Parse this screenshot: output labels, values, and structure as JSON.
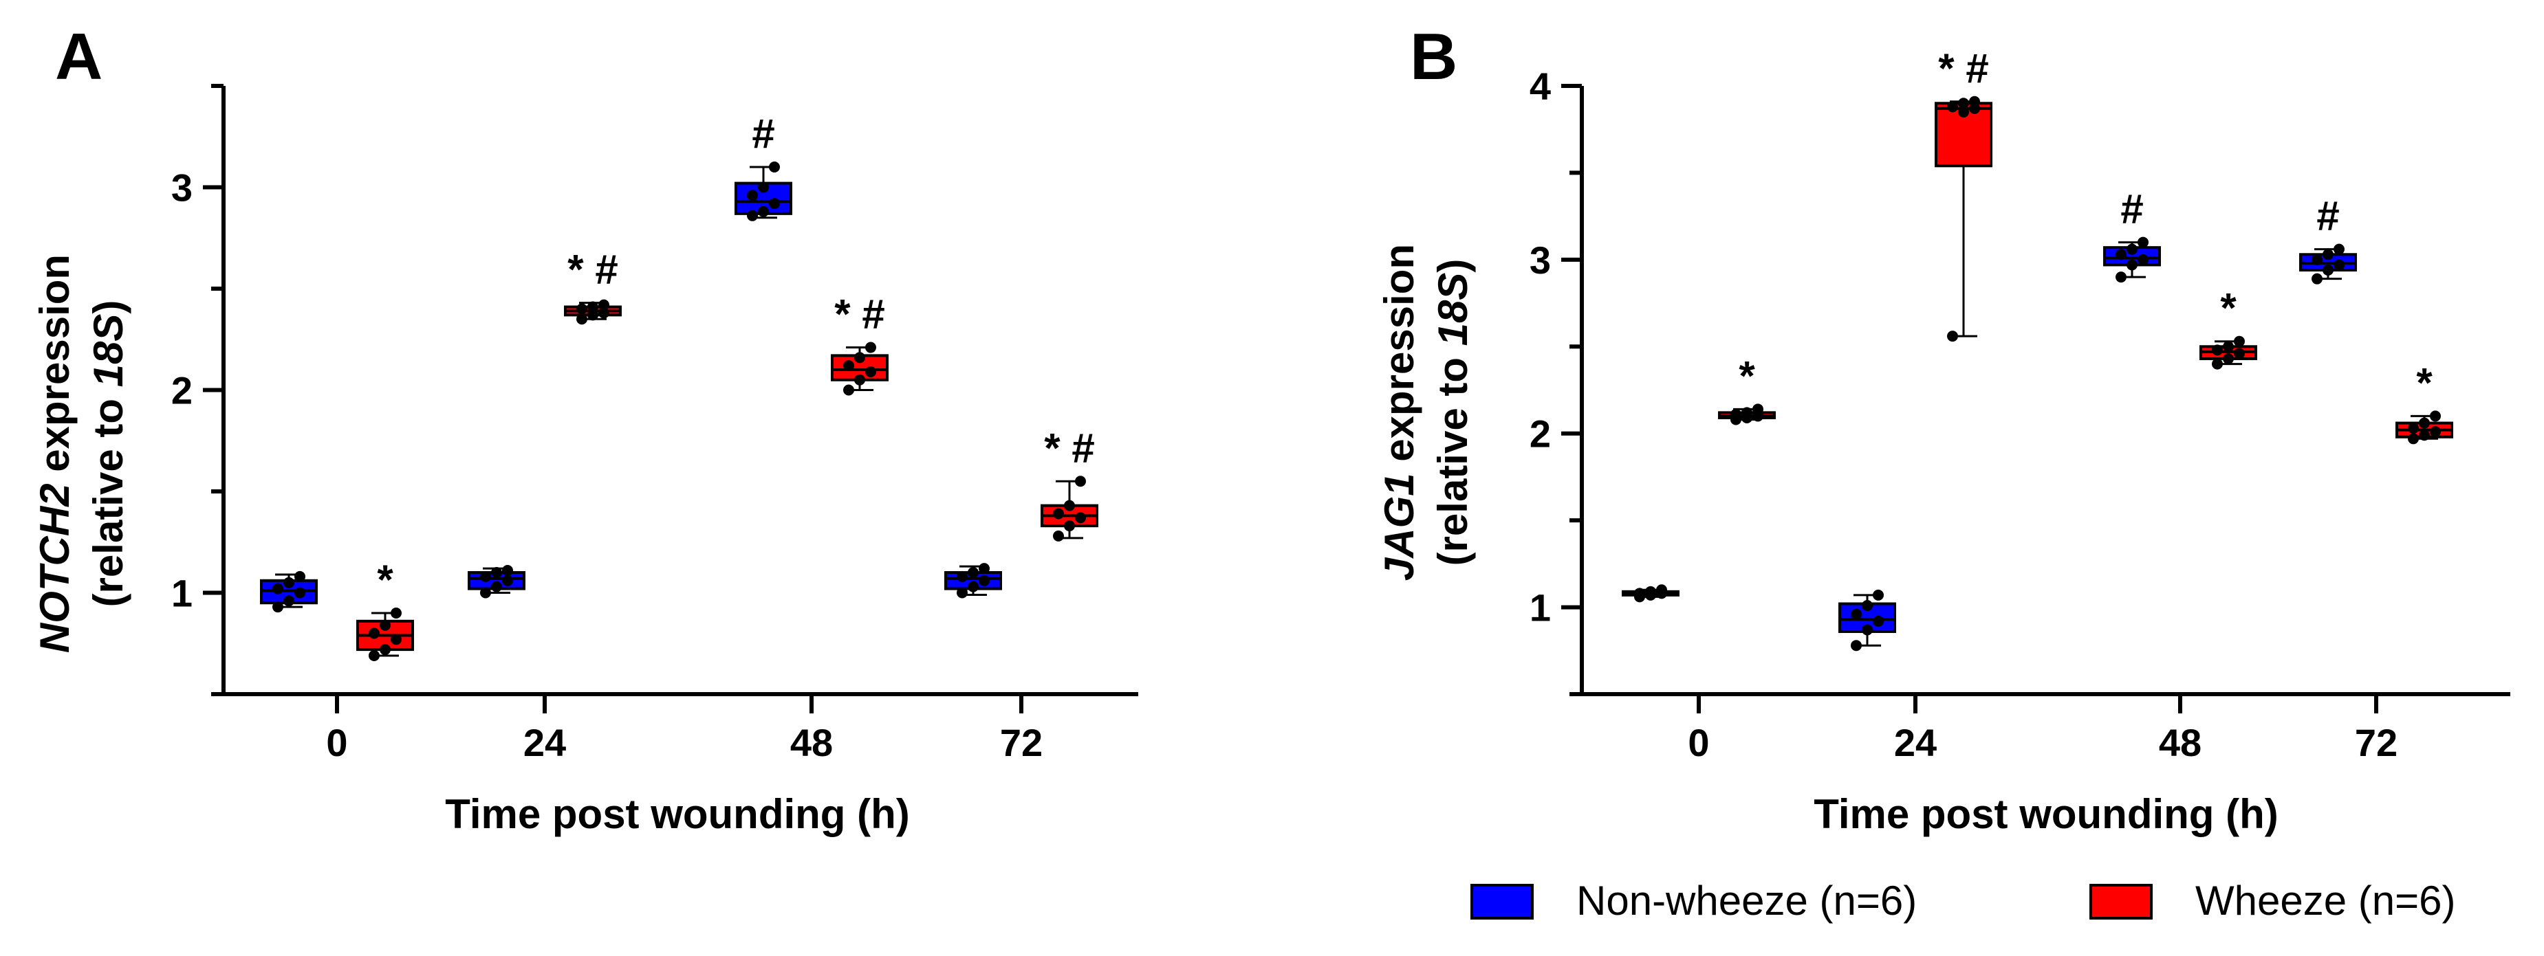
{
  "colors": {
    "non_wheeze": "#0000ff",
    "wheeze": "#ff0000"
  },
  "legend": [
    {
      "label": "Non-wheeze (n=6)",
      "color": "#0000ff"
    },
    {
      "label": "Wheeze (n=6)",
      "color": "#ff0000"
    }
  ],
  "chart_data": [
    {
      "type": "box",
      "panel": "A",
      "ylabel_italic": "NOTCH2",
      "ylabel_rest": " expression",
      "ylabel_line2_prefix": "(relative to ",
      "ylabel_line2_italic": "18S",
      "ylabel_line2_suffix": ")",
      "xlabel": "Time post wounding (h)",
      "categories": [
        "0",
        "24",
        "48",
        "72"
      ],
      "ylim": [
        0.5,
        3.5
      ],
      "yticks": [
        1,
        2,
        3
      ],
      "series": [
        {
          "name": "Non-wheeze (n=6)",
          "color": "#0000ff",
          "boxes": [
            {
              "min": 0.93,
              "q1": 0.95,
              "median": 1.01,
              "q3": 1.06,
              "max": 1.09,
              "annotation": "",
              "points": [
                0.93,
                0.96,
                1.0,
                1.02,
                1.05,
                1.08
              ]
            },
            {
              "min": 1.0,
              "q1": 1.02,
              "median": 1.07,
              "q3": 1.1,
              "max": 1.12,
              "annotation": "",
              "points": [
                1.0,
                1.03,
                1.06,
                1.08,
                1.1,
                1.11
              ]
            },
            {
              "min": 2.85,
              "q1": 2.87,
              "median": 2.93,
              "q3": 3.02,
              "max": 3.1,
              "annotation": "#",
              "points": [
                2.86,
                2.88,
                2.92,
                2.96,
                3.0,
                3.1
              ]
            },
            {
              "min": 0.99,
              "q1": 1.02,
              "median": 1.07,
              "q3": 1.1,
              "max": 1.13,
              "annotation": "",
              "points": [
                1.0,
                1.03,
                1.06,
                1.08,
                1.1,
                1.12
              ]
            }
          ]
        },
        {
          "name": "Wheeze (n=6)",
          "color": "#ff0000",
          "boxes": [
            {
              "min": 0.69,
              "q1": 0.72,
              "median": 0.79,
              "q3": 0.86,
              "max": 0.9,
              "annotation": "*",
              "points": [
                0.69,
                0.72,
                0.77,
                0.8,
                0.84,
                0.9
              ]
            },
            {
              "min": 2.35,
              "q1": 2.37,
              "median": 2.39,
              "q3": 2.41,
              "max": 2.43,
              "annotation": "* #",
              "points": [
                2.35,
                2.37,
                2.38,
                2.4,
                2.41,
                2.42
              ]
            },
            {
              "min": 2.0,
              "q1": 2.05,
              "median": 2.1,
              "q3": 2.17,
              "max": 2.21,
              "annotation": "* #",
              "points": [
                2.0,
                2.05,
                2.09,
                2.12,
                2.16,
                2.21
              ]
            },
            {
              "min": 1.27,
              "q1": 1.33,
              "median": 1.38,
              "q3": 1.43,
              "max": 1.55,
              "annotation": "* #",
              "points": [
                1.28,
                1.33,
                1.37,
                1.39,
                1.43,
                1.55
              ]
            }
          ]
        }
      ]
    },
    {
      "type": "box",
      "panel": "B",
      "ylabel_italic": "JAG1",
      "ylabel_rest": " expression",
      "ylabel_line2_prefix": "(relative to ",
      "ylabel_line2_italic": "18S",
      "ylabel_line2_suffix": ")",
      "xlabel": "Time post wounding (h)",
      "categories": [
        "0",
        "24",
        "48",
        "72"
      ],
      "ylim": [
        0.5,
        4.0
      ],
      "yticks": [
        1,
        2,
        3,
        4
      ],
      "series": [
        {
          "name": "Non-wheeze (n=6)",
          "color": "#0000ff",
          "boxes": [
            {
              "min": 1.06,
              "q1": 1.07,
              "median": 1.08,
              "q3": 1.09,
              "max": 1.1,
              "annotation": "",
              "points": [
                1.06,
                1.07,
                1.08,
                1.08,
                1.09,
                1.1
              ]
            },
            {
              "min": 0.78,
              "q1": 0.86,
              "median": 0.93,
              "q3": 1.02,
              "max": 1.07,
              "annotation": "",
              "points": [
                0.78,
                0.87,
                0.92,
                0.96,
                1.01,
                1.07
              ]
            },
            {
              "min": 2.9,
              "q1": 2.97,
              "median": 3.01,
              "q3": 3.07,
              "max": 3.1,
              "annotation": "#",
              "points": [
                2.9,
                2.97,
                3.0,
                3.03,
                3.06,
                3.1
              ]
            },
            {
              "min": 2.89,
              "q1": 2.94,
              "median": 2.98,
              "q3": 3.03,
              "max": 3.06,
              "annotation": "#",
              "points": [
                2.89,
                2.94,
                2.97,
                3.0,
                3.03,
                3.06
              ]
            }
          ]
        },
        {
          "name": "Wheeze (n=6)",
          "color": "#ff0000",
          "boxes": [
            {
              "min": 2.08,
              "q1": 2.09,
              "median": 2.1,
              "q3": 2.12,
              "max": 2.14,
              "annotation": "*",
              "points": [
                2.08,
                2.09,
                2.1,
                2.11,
                2.12,
                2.14
              ]
            },
            {
              "min": 2.56,
              "q1": 3.54,
              "median": 3.87,
              "q3": 3.9,
              "max": 3.91,
              "annotation": "* #",
              "points": [
                2.56,
                3.85,
                3.87,
                3.88,
                3.9,
                3.91
              ]
            },
            {
              "min": 2.4,
              "q1": 2.43,
              "median": 2.47,
              "q3": 2.5,
              "max": 2.53,
              "annotation": "*",
              "points": [
                2.4,
                2.43,
                2.46,
                2.48,
                2.5,
                2.53
              ]
            },
            {
              "min": 1.97,
              "q1": 1.98,
              "median": 2.02,
              "q3": 2.06,
              "max": 2.1,
              "annotation": "*",
              "points": [
                1.97,
                1.99,
                2.01,
                2.03,
                2.06,
                2.1
              ]
            }
          ]
        }
      ]
    }
  ]
}
